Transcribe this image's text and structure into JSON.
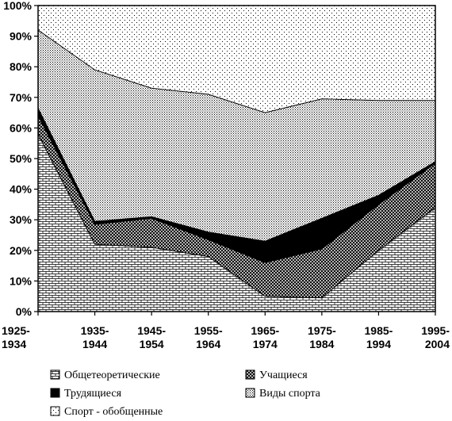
{
  "chart_data": {
    "type": "area",
    "stacked": true,
    "percent": true,
    "categories": [
      [
        "1925-",
        "1934"
      ],
      [
        "1935-",
        "1944"
      ],
      [
        "1945-",
        "1954"
      ],
      [
        "1955-",
        "1964"
      ],
      [
        "1965-",
        "1974"
      ],
      [
        "1975-",
        "1984"
      ],
      [
        "1985-",
        "1994"
      ],
      [
        "1995-",
        "2004"
      ]
    ],
    "series": [
      {
        "name": "Общетеоретические",
        "pattern": "brick",
        "values": [
          58,
          22,
          21,
          18,
          5,
          4.5,
          20,
          34
        ]
      },
      {
        "name": "Учащиеся",
        "pattern": "crosshatch",
        "values": [
          6,
          6.5,
          9.5,
          5.5,
          11,
          16,
          15,
          14.5
        ]
      },
      {
        "name": "Трудящиеся",
        "pattern": "solid-black",
        "values": [
          2.5,
          1,
          0.5,
          2.5,
          7,
          10,
          3,
          0.5
        ]
      },
      {
        "name": "Виды спорта",
        "pattern": "dense-dots",
        "values": [
          25.5,
          49.5,
          42,
          45,
          42,
          39,
          31,
          20
        ]
      },
      {
        "name": "Спорт - обобщенные",
        "pattern": "sparse-dots",
        "values": [
          8,
          21,
          27,
          29,
          35,
          30.5,
          31,
          31
        ]
      }
    ],
    "ylim": [
      0,
      100
    ],
    "yticks": [
      "0%",
      "10%",
      "20%",
      "30%",
      "40%",
      "50%",
      "60%",
      "70%",
      "80%",
      "90%",
      "100%"
    ],
    "legend": {
      "position": "bottom",
      "items": [
        "Общетеоретические",
        "Учащиеся",
        "Трудящиеся",
        "Виды спорта",
        "Спорт - обобщенные"
      ]
    }
  }
}
